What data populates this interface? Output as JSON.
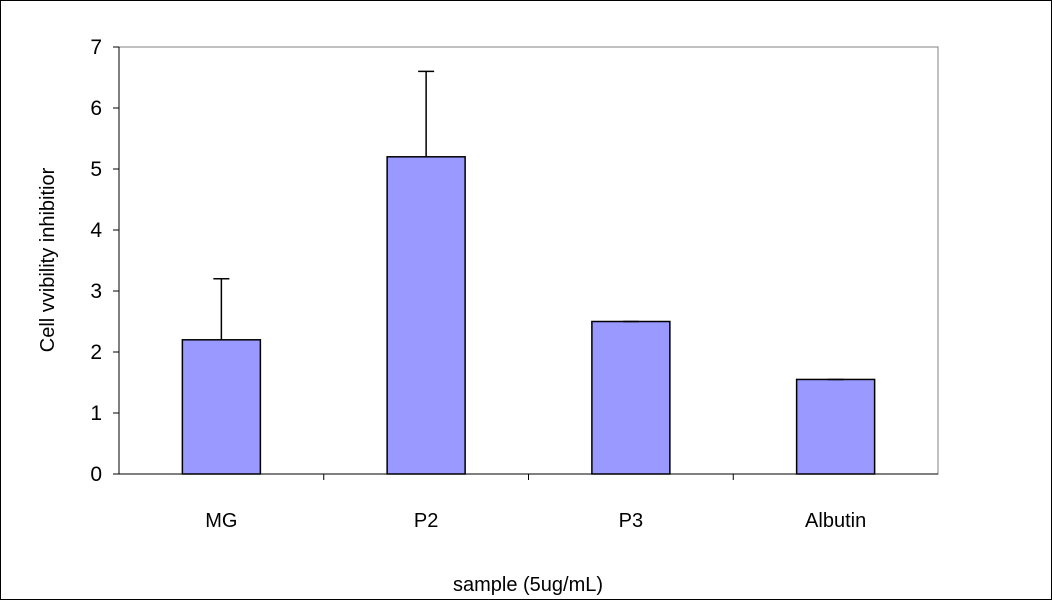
{
  "chart_data": {
    "type": "bar",
    "title": "",
    "xlabel": "sample (5ug/mL)",
    "ylabel": "Cell vvibility inhibitior",
    "categories": [
      "MG",
      "P2",
      "P3",
      "Albutin"
    ],
    "series": [
      {
        "values": [
          2.2,
          5.2,
          2.5,
          1.55
        ],
        "error_plus": [
          1.0,
          1.4,
          0.0,
          0.0
        ],
        "color": "#9999ff"
      }
    ],
    "ylim": [
      0,
      7
    ],
    "yticks": [
      0,
      1,
      2,
      3,
      4,
      5,
      6,
      7
    ],
    "grid": false,
    "legend": "none"
  }
}
